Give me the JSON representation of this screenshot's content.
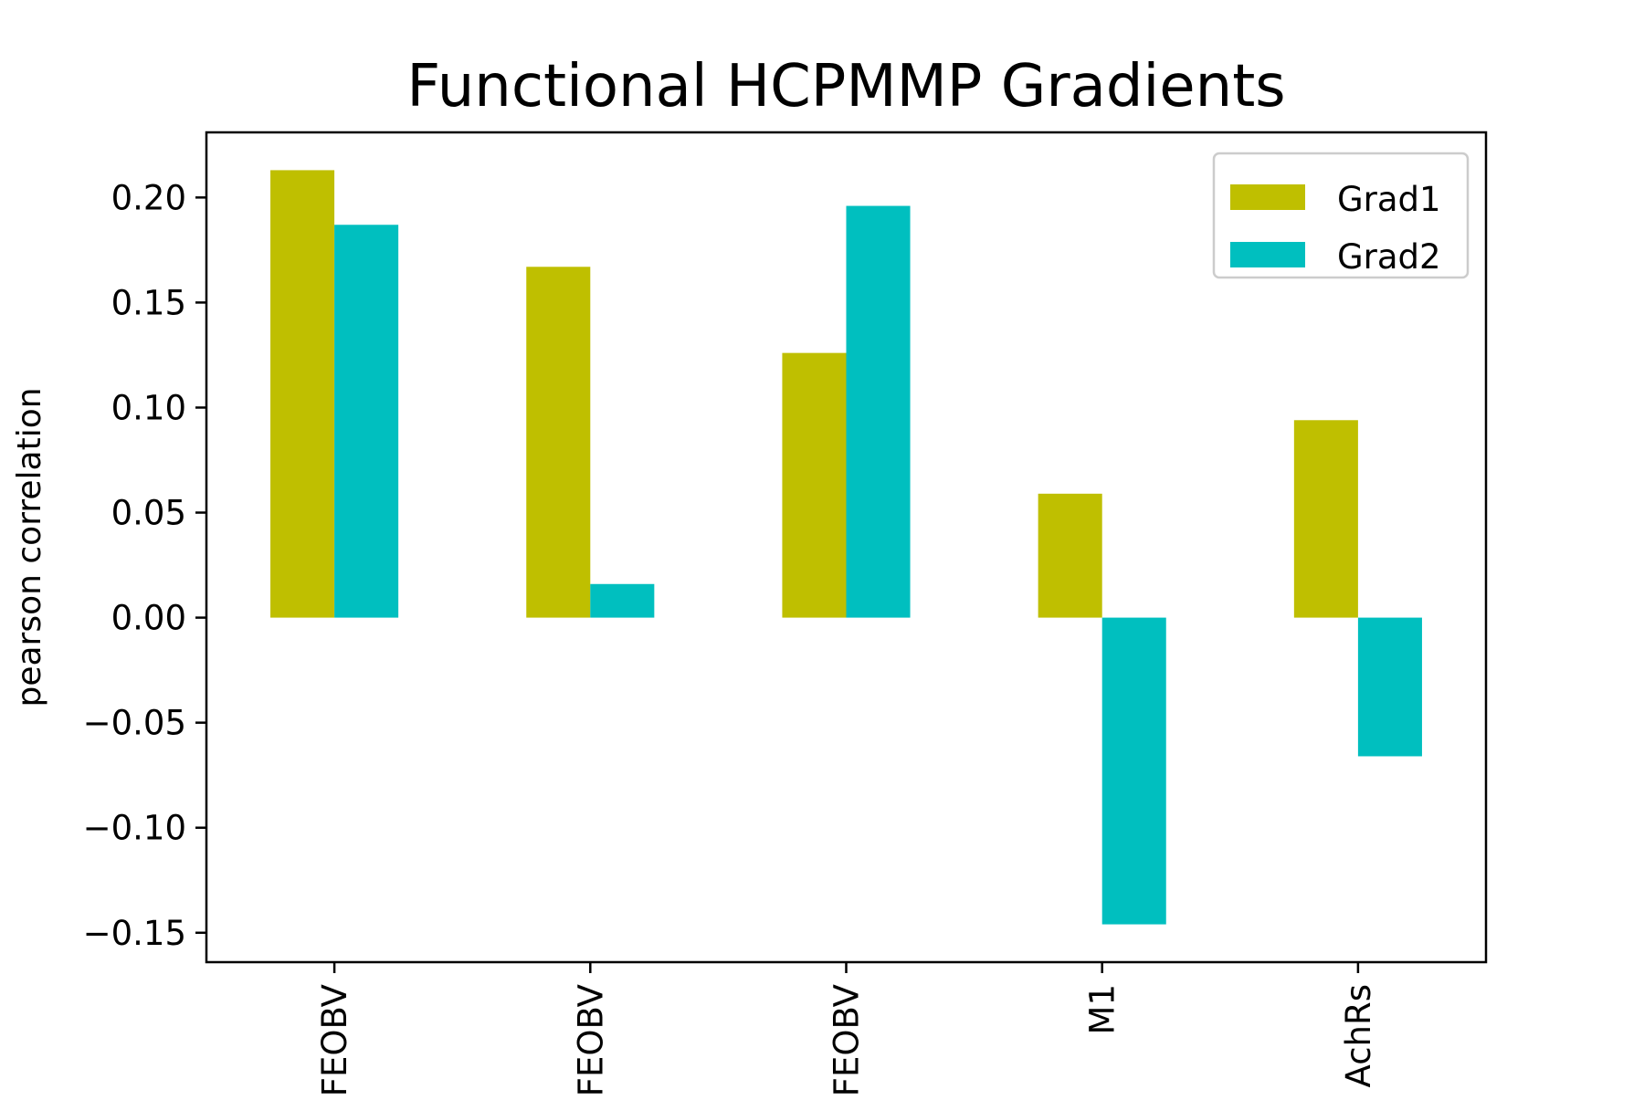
{
  "chart_data": {
    "type": "bar",
    "title": "Functional HCPMMP Gradients",
    "xlabel": "",
    "ylabel": "pearson correlation",
    "categories": [
      "FEOBV",
      "FEOBV",
      "FEOBV",
      "M1",
      "AchRs"
    ],
    "series": [
      {
        "name": "Grad1",
        "color": "#bfbf00",
        "values": [
          0.213,
          0.167,
          0.126,
          0.059,
          0.094
        ]
      },
      {
        "name": "Grad2",
        "color": "#00bfbf",
        "values": [
          0.187,
          0.016,
          0.196,
          -0.146,
          -0.066
        ]
      }
    ],
    "ylim": [
      -0.164,
      0.231
    ],
    "yticks": [
      0.2,
      0.15,
      0.1,
      0.05,
      0.0,
      -0.05,
      -0.1,
      -0.15
    ],
    "ytick_labels": [
      "0.20",
      "0.15",
      "0.10",
      "0.05",
      "0.00",
      "−0.05",
      "−0.10",
      "−0.15"
    ],
    "grid": false,
    "legend_position": "top-right"
  }
}
